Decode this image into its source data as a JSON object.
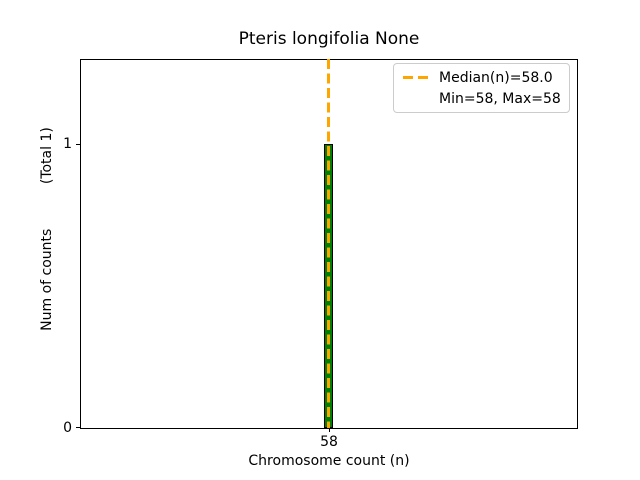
{
  "chart_data": {
    "type": "bar",
    "title": "Pteris longifolia None",
    "xlabel": "Chromosome count (n)",
    "ylabel": "Num of counts          (Total 1)",
    "x": [
      58
    ],
    "values": [
      1
    ],
    "bar_width": 0.55,
    "xlim": [
      40,
      76
    ],
    "ylim": [
      0,
      1.3
    ],
    "xticks": [
      58
    ],
    "yticks": [
      0,
      1
    ],
    "stats": {
      "median": 58.0,
      "min": 58,
      "max": 58,
      "total": 1
    },
    "colors": {
      "bar_fill": "#008000",
      "bar_edge": "#000000",
      "median_line": "#ffa500",
      "axes": "#000000",
      "legend_border": "#cccccc",
      "background": "#ffffff"
    },
    "grid": false,
    "legend": {
      "position": "upper right",
      "entries": [
        {
          "label": "Median(n)=58.0",
          "handle": "dashed-line",
          "color": "#ffa500"
        },
        {
          "label": "Min=58, Max=58",
          "handle": "none"
        }
      ]
    }
  }
}
